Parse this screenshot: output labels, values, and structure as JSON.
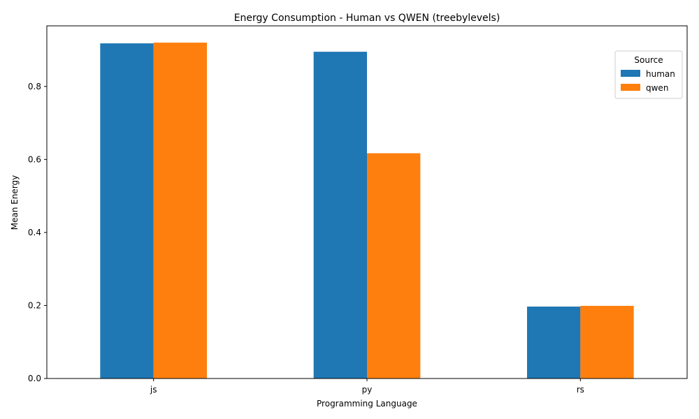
{
  "chart_data": {
    "type": "bar",
    "title": "Energy Consumption - Human vs QWEN (treebylevels)",
    "xlabel": "Programming Language",
    "ylabel": "Mean Energy",
    "categories": [
      "js",
      "py",
      "rs"
    ],
    "series": [
      {
        "name": "human",
        "color": "#1f77b4",
        "values": [
          0.918,
          0.895,
          0.197
        ]
      },
      {
        "name": "qwen",
        "color": "#ff7f0e",
        "values": [
          0.92,
          0.617,
          0.199
        ]
      }
    ],
    "ylim": [
      0,
      0.966
    ],
    "yticks": [
      0.0,
      0.2,
      0.4,
      0.6,
      0.8
    ],
    "ytick_labels": [
      "0.0",
      "0.2",
      "0.4",
      "0.6",
      "0.8"
    ],
    "grid": false,
    "legend": {
      "title": "Source",
      "position": "top-right"
    }
  }
}
